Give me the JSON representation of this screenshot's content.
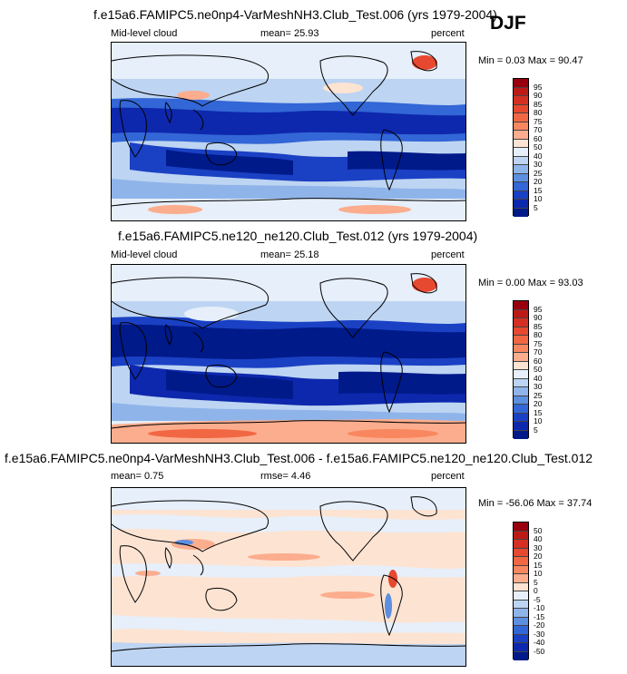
{
  "season": "DJF",
  "panels": [
    {
      "title": "f.e15a6.FAMIPC5.ne0np4-VarMeshNH3.Club_Test.006 (yrs 1979-2004)",
      "left_label": "Mid-level cloud",
      "center_label": "mean=  25.93",
      "right_label": "percent",
      "minmax": "Min =  0.03 Max = 90.47",
      "colorbar": {
        "labels": [
          "95",
          "90",
          "85",
          "80",
          "75",
          "70",
          "60",
          "50",
          "40",
          "30",
          "25",
          "20",
          "15",
          "10",
          "5"
        ],
        "colors": [
          "#99000d",
          "#bd1a17",
          "#d42f22",
          "#e6492f",
          "#f26743",
          "#f8875f",
          "#fbad8e",
          "#fde3d2",
          "#e6effa",
          "#bdd4f2",
          "#8fb4ea",
          "#5c8fe0",
          "#3366d6",
          "#1a40c4",
          "#0d28ad",
          "#001a8a"
        ]
      }
    },
    {
      "title": "f.e15a6.FAMIPC5.ne120_ne120.Club_Test.012 (yrs 1979-2004)",
      "left_label": "Mid-level cloud",
      "center_label": "mean=  25.18",
      "right_label": "percent",
      "minmax": "Min =  0.00 Max = 93.03",
      "colorbar": {
        "labels": [
          "95",
          "90",
          "85",
          "80",
          "75",
          "70",
          "60",
          "50",
          "40",
          "30",
          "25",
          "20",
          "15",
          "10",
          "5"
        ],
        "colors": [
          "#99000d",
          "#bd1a17",
          "#d42f22",
          "#e6492f",
          "#f26743",
          "#f8875f",
          "#fbad8e",
          "#fde3d2",
          "#e6effa",
          "#bdd4f2",
          "#8fb4ea",
          "#5c8fe0",
          "#3366d6",
          "#1a40c4",
          "#0d28ad",
          "#001a8a"
        ]
      }
    },
    {
      "title": "f.e15a6.FAMIPC5.ne0np4-VarMeshNH3.Club_Test.006 - f.e15a6.FAMIPC5.ne120_ne120.Club_Test.012",
      "left_label": "mean=  0.75",
      "center_label": "rmse=  4.46",
      "right_label": "percent",
      "minmax": "Min = -56.06 Max = 37.74",
      "colorbar": {
        "labels": [
          "50",
          "40",
          "30",
          "20",
          "15",
          "10",
          "5",
          "0",
          "-5",
          "-10",
          "-15",
          "-20",
          "-30",
          "-40",
          "-50"
        ],
        "colors": [
          "#99000d",
          "#bd1a17",
          "#d42f22",
          "#e6492f",
          "#f26743",
          "#f8875f",
          "#fbad8e",
          "#fde3d2",
          "#e6effa",
          "#bdd4f2",
          "#8fb4ea",
          "#5c8fe0",
          "#3366d6",
          "#1a40c4",
          "#0d28ad",
          "#001a8a"
        ]
      }
    }
  ],
  "chart_data": [
    {
      "type": "heatmap",
      "title": "f.e15a6.FAMIPC5.ne0np4-VarMeshNH3.Club_Test.006 (yrs 1979-2004)",
      "variable": "Mid-level cloud",
      "units": "percent",
      "mean": 25.93,
      "min": 0.03,
      "max": 90.47,
      "contour_levels": [
        5,
        10,
        15,
        20,
        25,
        30,
        40,
        50,
        60,
        70,
        75,
        80,
        85,
        90,
        95
      ]
    },
    {
      "type": "heatmap",
      "title": "f.e15a6.FAMIPC5.ne120_ne120.Club_Test.012 (yrs 1979-2004)",
      "variable": "Mid-level cloud",
      "units": "percent",
      "mean": 25.18,
      "min": 0.0,
      "max": 93.03,
      "contour_levels": [
        5,
        10,
        15,
        20,
        25,
        30,
        40,
        50,
        60,
        70,
        75,
        80,
        85,
        90,
        95
      ]
    },
    {
      "type": "heatmap",
      "title": "f.e15a6.FAMIPC5.ne0np4-VarMeshNH3.Club_Test.006 - f.e15a6.FAMIPC5.ne120_ne120.Club_Test.012",
      "units": "percent",
      "mean": 0.75,
      "rmse": 4.46,
      "min": -56.06,
      "max": 37.74,
      "contour_levels": [
        -50,
        -40,
        -30,
        -20,
        -15,
        -10,
        -5,
        0,
        5,
        10,
        15,
        20,
        30,
        40,
        50
      ]
    }
  ]
}
